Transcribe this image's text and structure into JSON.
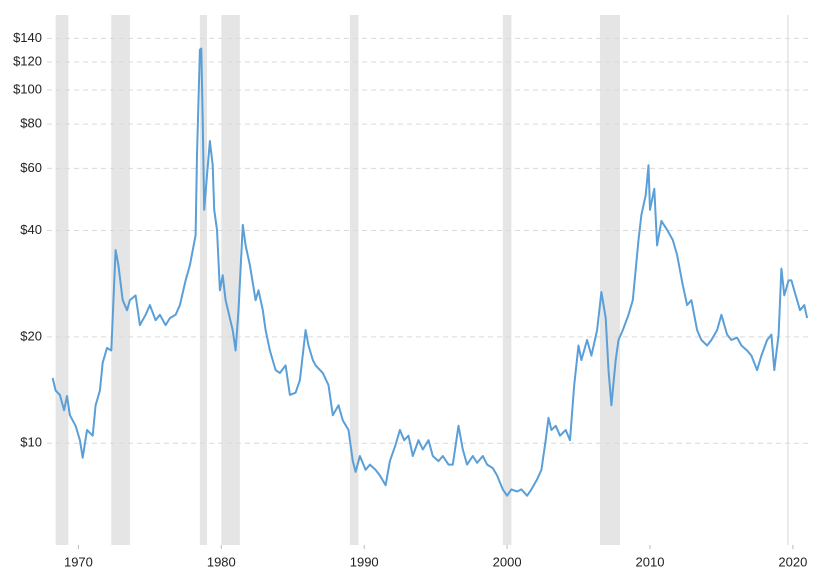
{
  "chart_data": {
    "type": "line",
    "log_y": true,
    "grid": true,
    "color": "#5a9fd8",
    "shade_color": "#e5e5e5",
    "xlim": [
      1967.8,
      2021.2
    ],
    "ylim": [
      5.15,
      163
    ],
    "xticks": [
      1970,
      1980,
      1990,
      2000,
      2010,
      2020
    ],
    "yticks": [
      {
        "value": 10,
        "label": "$10"
      },
      {
        "value": 20,
        "label": "$20"
      },
      {
        "value": 40,
        "label": "$40"
      },
      {
        "value": 60,
        "label": "$60"
      },
      {
        "value": 80,
        "label": "$80"
      },
      {
        "value": 100,
        "label": "$100"
      },
      {
        "value": 120,
        "label": "$120"
      },
      {
        "value": 140,
        "label": "$140"
      }
    ],
    "recessions": [
      [
        1968.4,
        1969.3
      ],
      [
        1972.3,
        1973.6
      ],
      [
        1978.5,
        1979.0
      ],
      [
        1980.0,
        1981.3
      ],
      [
        1989.0,
        1989.6
      ],
      [
        1999.7,
        2000.3
      ],
      [
        2006.5,
        2007.9
      ],
      [
        2019.6,
        2019.7
      ]
    ],
    "x": [
      1968.2,
      1968.4,
      1968.7,
      1969.0,
      1969.2,
      1969.4,
      1969.8,
      1970.1,
      1970.3,
      1970.6,
      1971.0,
      1971.2,
      1971.5,
      1971.7,
      1972.0,
      1972.3,
      1972.6,
      1972.8,
      1973.1,
      1973.4,
      1973.6,
      1974.0,
      1974.3,
      1974.7,
      1975.0,
      1975.4,
      1975.7,
      1976.1,
      1976.4,
      1976.8,
      1977.1,
      1977.5,
      1977.8,
      1978.2,
      1978.3,
      1978.5,
      1978.6,
      1978.7,
      1978.8,
      1979.0,
      1979.2,
      1979.4,
      1979.5,
      1979.7,
      1979.9,
      1980.1,
      1980.3,
      1980.8,
      1981.0,
      1981.2,
      1981.5,
      1981.7,
      1982.0,
      1982.4,
      1982.6,
      1982.9,
      1983.1,
      1983.4,
      1983.8,
      1984.1,
      1984.5,
      1984.8,
      1985.2,
      1985.5,
      1985.9,
      1986.1,
      1986.4,
      1986.6,
      1987.1,
      1987.5,
      1987.8,
      1988.2,
      1988.5,
      1988.9,
      1989.2,
      1989.4,
      1989.7,
      1990.1,
      1990.4,
      1990.8,
      1991.1,
      1991.5,
      1991.8,
      1992.2,
      1992.5,
      1992.8,
      1993.1,
      1993.4,
      1993.8,
      1994.1,
      1994.5,
      1994.8,
      1995.2,
      1995.5,
      1995.9,
      1996.2,
      1996.6,
      1996.9,
      1997.2,
      1997.6,
      1997.9,
      1998.3,
      1998.6,
      1999.0,
      1999.3,
      1999.7,
      2000.0,
      2000.3,
      2000.7,
      2001.0,
      2001.4,
      2001.7,
      2002.1,
      2002.4,
      2002.7,
      2002.9,
      2003.1,
      2003.4,
      2003.7,
      2004.1,
      2004.4,
      2004.7,
      2005.0,
      2005.2,
      2005.6,
      2005.9,
      2006.3,
      2006.6,
      2006.9,
      2007.1,
      2007.3,
      2007.6,
      2007.8,
      2008.1,
      2008.5,
      2008.8,
      2009.2,
      2009.4,
      2009.7,
      2009.9,
      2010.0,
      2010.3,
      2010.5,
      2010.8,
      2011.2,
      2011.6,
      2011.9,
      2012.3,
      2012.6,
      2012.9,
      2013.3,
      2013.6,
      2014.0,
      2014.3,
      2014.7,
      2015.0,
      2015.4,
      2015.7,
      2016.1,
      2016.4,
      2016.8,
      2017.1,
      2017.5,
      2017.8,
      2018.2,
      2018.5,
      2018.7,
      2019.0,
      2019.2,
      2019.4,
      2019.7,
      2019.9,
      2020.2,
      2020.5,
      2020.8,
      2021.0
    ],
    "values": [
      15.3,
      14.1,
      13.7,
      12.4,
      13.6,
      12.0,
      11.2,
      10.2,
      9.1,
      10.9,
      10.5,
      12.8,
      14.1,
      16.9,
      18.6,
      18.3,
      35.2,
      31.9,
      25.4,
      23.8,
      25.4,
      26.2,
      21.6,
      23.1,
      24.6,
      22.3,
      23.1,
      21.6,
      22.6,
      23.1,
      24.6,
      28.9,
      31.9,
      38.8,
      65.5,
      130,
      131,
      82,
      45.8,
      57.4,
      71.7,
      61.2,
      45.8,
      40.2,
      27.1,
      29.9,
      25.4,
      20.9,
      18.3,
      23.8,
      41.5,
      36.3,
      31.9,
      25.4,
      27.1,
      23.8,
      20.9,
      18.3,
      16.1,
      15.8,
      16.6,
      13.7,
      13.9,
      15.1,
      20.9,
      18.9,
      17.2,
      16.6,
      15.8,
      14.6,
      12.0,
      12.8,
      11.6,
      10.9,
      8.9,
      8.3,
      9.2,
      8.4,
      8.7,
      8.4,
      8.1,
      7.6,
      8.9,
      9.9,
      10.9,
      10.2,
      10.5,
      9.2,
      10.2,
      9.6,
      10.2,
      9.2,
      8.9,
      9.2,
      8.7,
      8.7,
      11.2,
      9.6,
      8.7,
      9.2,
      8.8,
      9.2,
      8.7,
      8.5,
      8.1,
      7.4,
      7.1,
      7.4,
      7.3,
      7.4,
      7.1,
      7.4,
      7.9,
      8.4,
      10.2,
      11.8,
      10.9,
      11.2,
      10.5,
      10.9,
      10.2,
      14.6,
      18.9,
      17.2,
      19.6,
      17.7,
      20.9,
      26.8,
      22.6,
      16.1,
      12.8,
      17.2,
      19.6,
      20.9,
      23.1,
      25.4,
      37.6,
      44.3,
      50.4,
      61.2,
      45.8,
      52.5,
      36.3,
      42.6,
      40.2,
      37.6,
      34.1,
      28.0,
      24.6,
      25.4,
      20.9,
      19.6,
      18.9,
      19.6,
      20.9,
      23.1,
      20.3,
      19.6,
      19.9,
      18.9,
      18.3,
      17.7,
      16.1,
      17.7,
      19.6,
      20.3,
      16.1,
      20.3,
      31.2,
      26.2,
      28.9,
      28.9,
      26.2,
      23.8,
      24.6,
      22.6
    ]
  }
}
